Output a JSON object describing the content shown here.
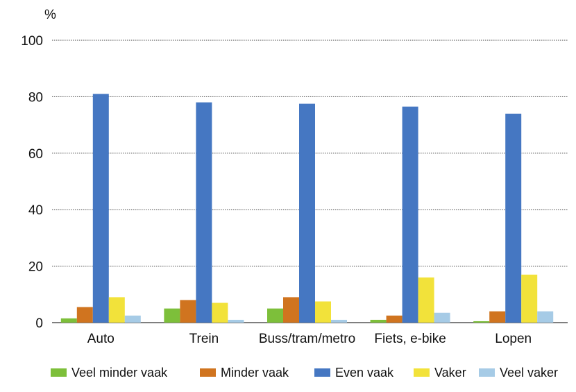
{
  "chart_data": {
    "type": "bar",
    "unit_label": "%",
    "ylim": [
      0,
      100
    ],
    "yticks": [
      0,
      20,
      40,
      60,
      80,
      100
    ],
    "grid": true,
    "legend_position": "bottom",
    "categories": [
      "Auto",
      "Trein",
      "Buss/tram/metro",
      "Fiets, e-bike",
      "Lopen"
    ],
    "series": [
      {
        "name": "Veel minder vaak",
        "color": "#7dbf3a",
        "values": [
          1.5,
          5,
          5,
          1,
          0.5
        ]
      },
      {
        "name": "Minder vaak",
        "color": "#d0741f",
        "values": [
          5.5,
          8,
          9,
          2.5,
          4
        ]
      },
      {
        "name": "Even vaak",
        "color": "#4577c2",
        "values": [
          81,
          78,
          77.5,
          76.5,
          74
        ]
      },
      {
        "name": "Vaker",
        "color": "#f2e23a",
        "values": [
          9,
          7,
          7.5,
          16,
          17
        ]
      },
      {
        "name": "Veel vaker",
        "color": "#a6cbe6",
        "values": [
          2.5,
          1,
          1,
          3.5,
          4
        ]
      }
    ]
  }
}
